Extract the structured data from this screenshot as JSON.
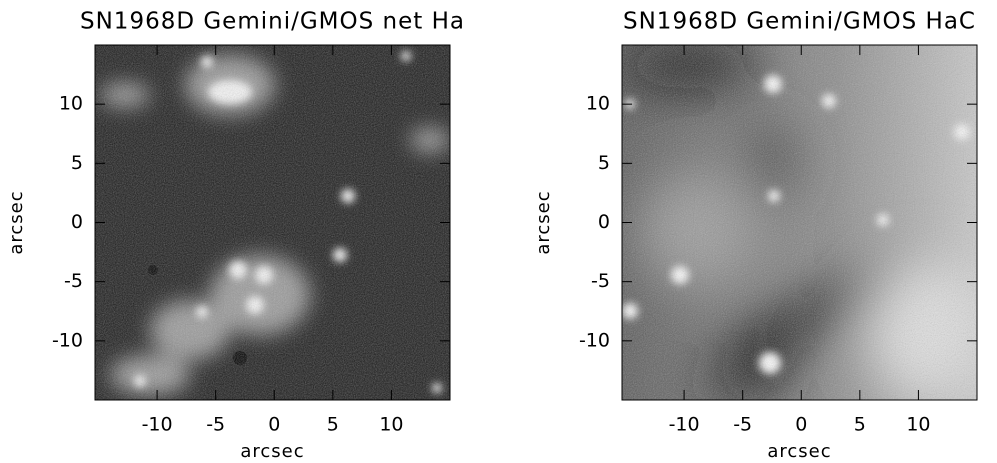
{
  "chart_data": [
    {
      "type": "image",
      "title": "SN1968D Gemini/GMOS net Ha",
      "xlabel": "arcsec",
      "ylabel": "arcsec",
      "xlim": [
        -15.3,
        15
      ],
      "ylim": [
        -15,
        15
      ],
      "xticks": [
        -10,
        -5,
        0,
        5,
        10
      ],
      "yticks": [
        -10,
        -5,
        0,
        5,
        10
      ]
    },
    {
      "type": "image",
      "title": "SN1968D Gemini/GMOS HaC",
      "xlabel": "arcsec",
      "ylabel": "arcsec",
      "xlim": [
        -15.3,
        15
      ],
      "ylim": [
        -15,
        15
      ],
      "xticks": [
        -10,
        -5,
        0,
        5,
        10
      ],
      "yticks": [
        -10,
        -5,
        0,
        5,
        10
      ]
    }
  ]
}
